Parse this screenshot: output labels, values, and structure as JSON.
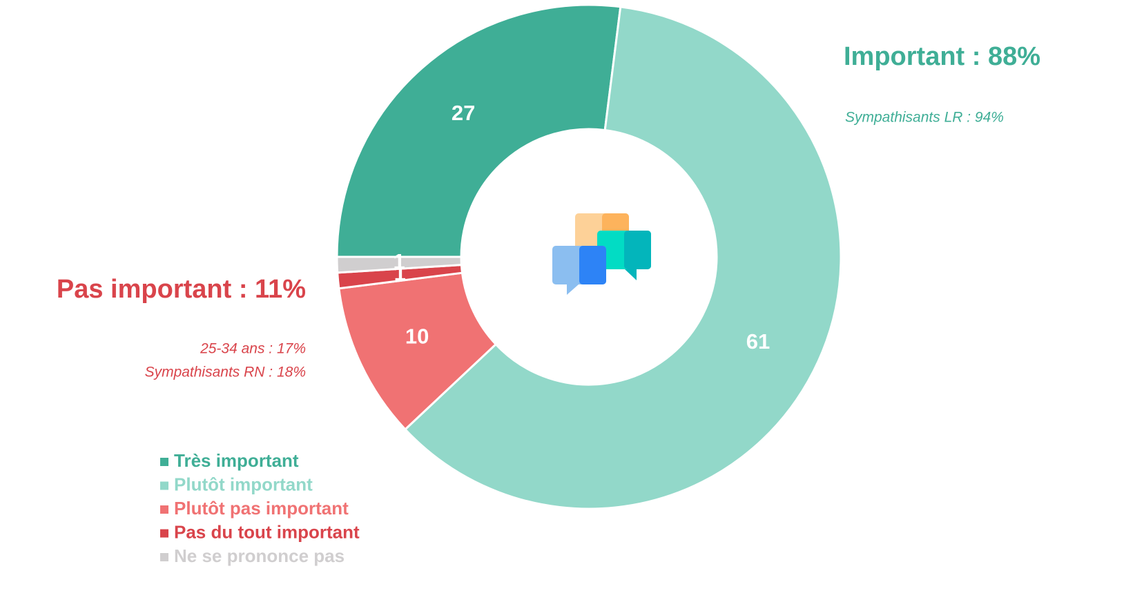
{
  "chart_data": {
    "type": "donut",
    "series": [
      {
        "name": "Très important",
        "color": "#3fae96",
        "values": [
          27
        ]
      },
      {
        "name": "Plutôt important",
        "color": "#92d8c9",
        "values": [
          61
        ]
      },
      {
        "name": "Plutôt pas important",
        "color": "#f07273",
        "values": [
          10
        ]
      },
      {
        "name": "Pas du tout important",
        "color": "#d9444b",
        "values": [
          1
        ]
      },
      {
        "name": "Ne se prononce pas",
        "color": "#d0cecf",
        "values": [
          1
        ]
      }
    ],
    "annotations": [
      {
        "text": "Important : 88%",
        "color": "#3fae96"
      },
      {
        "text": "Sympathisants LR : 94%",
        "color": "#3fae96"
      },
      {
        "text": "Pas important : 11%",
        "color": "#d9444b"
      },
      {
        "text": "25-34 ans : 17%",
        "color": "#d9444b"
      },
      {
        "text": "Sympathisants RN : 18%",
        "color": "#d9444b"
      }
    ],
    "legend": "bottom-left"
  }
}
